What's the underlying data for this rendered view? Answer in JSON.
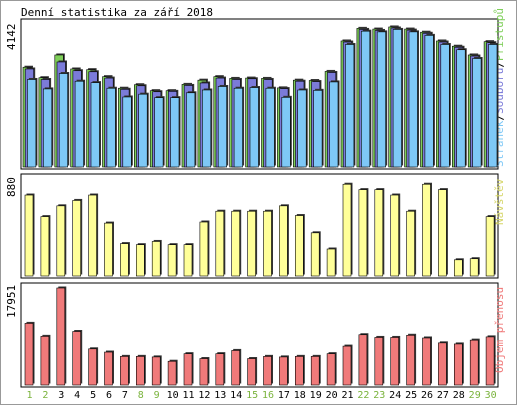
{
  "title": "Denní statistika za září 2018",
  "colors": {
    "background": "#ffffff",
    "frame": "#000000",
    "hits": "#7fcf5a",
    "files": "#7b7bd9",
    "pages": "#7ec8f6",
    "visits": "#ffff99",
    "volume": "#f07a7a",
    "weekend_day": "#7ab33c",
    "weekday": "#000000"
  },
  "chart_data": [
    {
      "type": "bar",
      "ylabel_max": "4142",
      "legend": [
        {
          "text": "Stránek",
          "color": "#7ec8f6"
        },
        {
          "text": "/",
          "color": "#000000"
        },
        {
          "text": "Souborů",
          "color": "#7b7bd9"
        },
        {
          "text": "/",
          "color": "#000000"
        },
        {
          "text": "Přístupů",
          "color": "#7fcf5a"
        }
      ],
      "categories": [
        "1",
        "2",
        "3",
        "4",
        "5",
        "6",
        "7",
        "8",
        "9",
        "10",
        "11",
        "12",
        "13",
        "14",
        "15",
        "16",
        "17",
        "18",
        "19",
        "20",
        "21",
        "22",
        "23",
        "24",
        "25",
        "26",
        "27",
        "28",
        "29",
        "30"
      ],
      "ylim": [
        0,
        4142
      ],
      "series": [
        {
          "name": "Přístupů",
          "values": [
            2850,
            2550,
            3200,
            2800,
            2780,
            2580,
            2250,
            2350,
            2180,
            2180,
            2360,
            2480,
            2580,
            2530,
            2540,
            2530,
            2260,
            2480,
            2470,
            2730,
            3600,
            3960,
            3940,
            4000,
            3940,
            3850,
            3600,
            3450,
            3200,
            3580
          ]
        },
        {
          "name": "Souborů",
          "values": [
            2800,
            2500,
            3000,
            2750,
            2720,
            2540,
            2220,
            2320,
            2150,
            2160,
            2330,
            2400,
            2540,
            2500,
            2520,
            2500,
            2240,
            2450,
            2440,
            2700,
            3570,
            3930,
            3900,
            3970,
            3910,
            3820,
            3570,
            3420,
            3170,
            3550
          ]
        },
        {
          "name": "Stránek",
          "values": [
            2500,
            2230,
            2670,
            2450,
            2410,
            2250,
            2000,
            2080,
            1980,
            1980,
            2120,
            2200,
            2300,
            2250,
            2270,
            2250,
            1990,
            2200,
            2190,
            2430,
            3500,
            3880,
            3860,
            3930,
            3860,
            3760,
            3500,
            3350,
            3100,
            3500
          ]
        }
      ]
    },
    {
      "type": "bar",
      "ylabel_max": "880",
      "legend": [
        {
          "text": "Návštěv",
          "color": "#ffff99"
        }
      ],
      "categories": [
        "1",
        "2",
        "3",
        "4",
        "5",
        "6",
        "7",
        "8",
        "9",
        "10",
        "11",
        "12",
        "13",
        "14",
        "15",
        "16",
        "17",
        "18",
        "19",
        "20",
        "21",
        "22",
        "23",
        "24",
        "25",
        "26",
        "27",
        "28",
        "29",
        "30"
      ],
      "ylim": [
        0,
        880
      ],
      "series": [
        {
          "name": "Návštěv",
          "values": [
            750,
            550,
            650,
            700,
            750,
            490,
            300,
            290,
            320,
            290,
            290,
            500,
            600,
            600,
            600,
            600,
            650,
            560,
            400,
            250,
            850,
            800,
            800,
            750,
            600,
            850,
            800,
            150,
            160,
            550
          ]
        }
      ]
    },
    {
      "type": "bar",
      "ylabel_max": "17951",
      "legend": [
        {
          "text": "Objem přenosu",
          "color": "#f07a7a"
        }
      ],
      "categories": [
        "1",
        "2",
        "3",
        "4",
        "5",
        "6",
        "7",
        "8",
        "9",
        "10",
        "11",
        "12",
        "13",
        "14",
        "15",
        "16",
        "17",
        "18",
        "19",
        "20",
        "21",
        "22",
        "23",
        "24",
        "25",
        "26",
        "27",
        "28",
        "29",
        "30"
      ],
      "weekend": [
        "1",
        "2",
        "8",
        "9",
        "15",
        "16",
        "22",
        "23",
        "29",
        "30"
      ],
      "ylim": [
        0,
        17951
      ],
      "series": [
        {
          "name": "Objem přenosu",
          "values": [
            11400,
            9000,
            17951,
            9900,
            6700,
            6100,
            5300,
            5300,
            5200,
            4400,
            5800,
            4900,
            5800,
            6400,
            4900,
            5300,
            5200,
            5300,
            5300,
            5800,
            7200,
            9300,
            8800,
            8800,
            9200,
            8700,
            7800,
            7600,
            8300,
            8900
          ]
        }
      ]
    }
  ]
}
